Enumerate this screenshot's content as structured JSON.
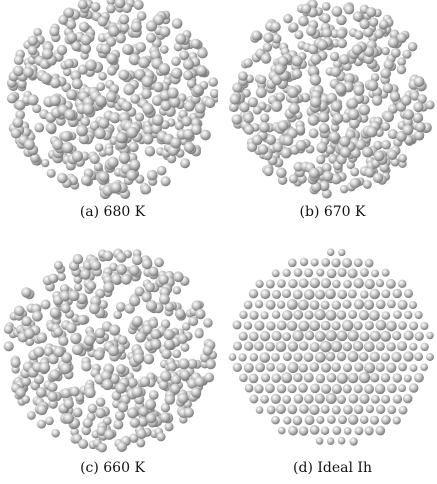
{
  "figure": {
    "panels": [
      {
        "id": "a",
        "caption": "(a) 680 K"
      },
      {
        "id": "b",
        "caption": "(b) 670 K"
      },
      {
        "id": "c",
        "caption": "(c) 660 K"
      },
      {
        "id": "d",
        "caption": "(d) Ideal Ih"
      }
    ]
  },
  "colors": {
    "atom_highlight": "#ffffff",
    "atom_mid": "#c9c9c9",
    "atom_shadow": "#6f6f6f",
    "background": "#ffffff"
  }
}
